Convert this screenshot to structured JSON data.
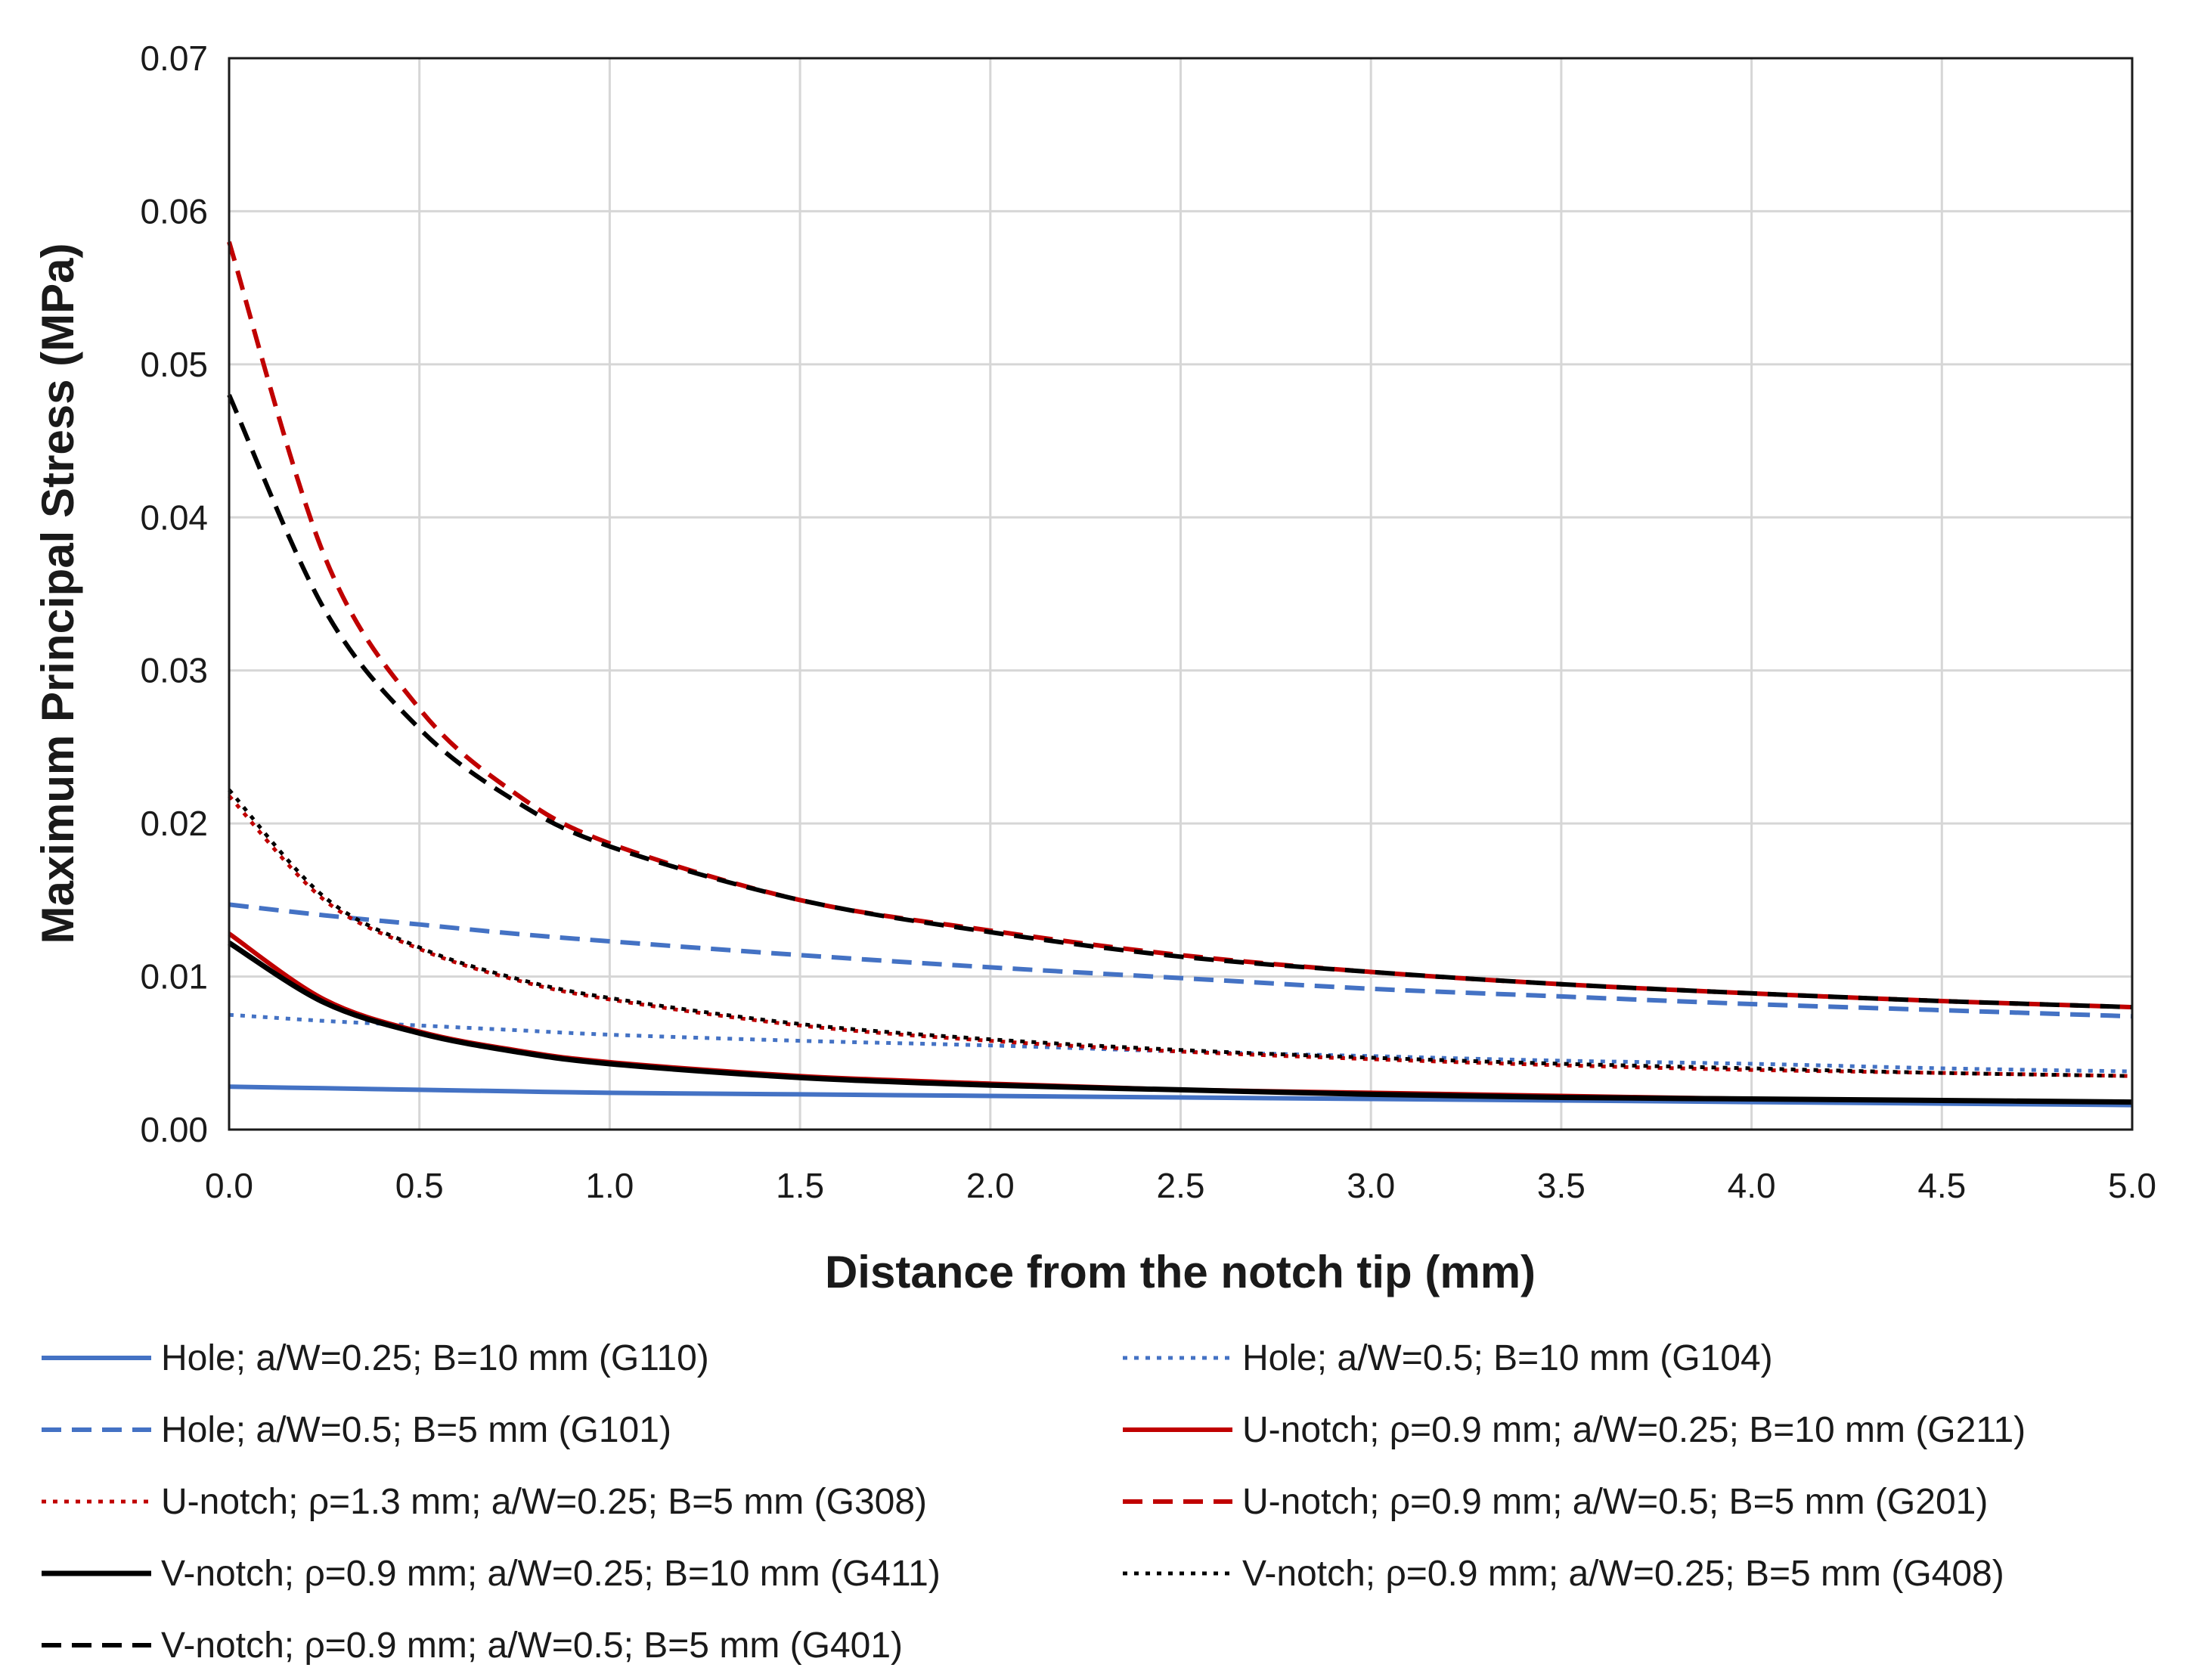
{
  "chart_data": {
    "type": "line",
    "title": "",
    "xlabel": "Distance from the notch tip (mm)",
    "ylabel": "Maximum Principal Stress (MPa)",
    "xlim": [
      0,
      5
    ],
    "ylim": [
      0,
      0.07
    ],
    "x_ticks": [
      "0.0",
      "0.5",
      "1.0",
      "1.5",
      "2.0",
      "2.5",
      "3.0",
      "3.5",
      "4.0",
      "4.5",
      "5.0"
    ],
    "y_ticks": [
      "0.00",
      "0.01",
      "0.02",
      "0.03",
      "0.04",
      "0.05",
      "0.06",
      "0.07"
    ],
    "grid": true,
    "legend_position": "bottom",
    "x": [
      0,
      0.25,
      0.5,
      0.75,
      1.0,
      1.5,
      2.0,
      2.5,
      3.0,
      3.5,
      4.0,
      4.5,
      5.0
    ],
    "series": [
      {
        "name": "Hole; a/W=0.25; B=10 mm (G110)",
        "color": "#4472c4",
        "style": "solid",
        "values": [
          0.0028,
          0.0027,
          0.0026,
          0.0025,
          0.0024,
          0.0023,
          0.0022,
          0.0021,
          0.002,
          0.0019,
          0.0018,
          0.0017,
          0.0016
        ]
      },
      {
        "name": "Hole; a/W=0.5; B=10 mm (G104)",
        "color": "#4472c4",
        "style": "dotted",
        "values": [
          0.0075,
          0.0071,
          0.0068,
          0.0065,
          0.0062,
          0.0058,
          0.0055,
          0.0051,
          0.0048,
          0.0045,
          0.0043,
          0.004,
          0.0038
        ]
      },
      {
        "name": "Hole; a/W=0.5; B=5 mm (G101)",
        "color": "#4472c4",
        "style": "dashed",
        "values": [
          0.0147,
          0.014,
          0.0134,
          0.0128,
          0.0123,
          0.0114,
          0.0106,
          0.0099,
          0.0092,
          0.0087,
          0.0082,
          0.0078,
          0.0074
        ]
      },
      {
        "name": "U-notch; ρ=0.9 mm; a/W=0.25; B=10 mm (G211)",
        "color": "#c00000",
        "style": "solid",
        "values": [
          0.0128,
          0.0085,
          0.0064,
          0.0052,
          0.0044,
          0.0035,
          0.003,
          0.0026,
          0.0024,
          0.0022,
          0.002,
          0.0019,
          0.0018
        ]
      },
      {
        "name": "U-notch; ρ=1.3 mm; a/W=0.25; B=5 mm (G308)",
        "color": "#c00000",
        "style": "dotted",
        "values": [
          0.0218,
          0.015,
          0.0118,
          0.0098,
          0.0085,
          0.0068,
          0.0058,
          0.0051,
          0.0046,
          0.0042,
          0.0039,
          0.0037,
          0.0035
        ]
      },
      {
        "name": "U-notch; ρ=0.9 mm; a/W=0.5; B=5 mm (G201)",
        "color": "#c00000",
        "style": "dashed",
        "values": [
          0.058,
          0.0375,
          0.0275,
          0.022,
          0.0187,
          0.015,
          0.013,
          0.0114,
          0.0103,
          0.0095,
          0.0089,
          0.0084,
          0.008
        ]
      },
      {
        "name": "V-notch; ρ=0.9 mm; a/W=0.25; B=10 mm (G411)",
        "color": "#000000",
        "style": "solid",
        "values": [
          0.0122,
          0.0083,
          0.0063,
          0.0051,
          0.0043,
          0.0034,
          0.0029,
          0.0026,
          0.0023,
          0.0021,
          0.002,
          0.0019,
          0.0018
        ]
      },
      {
        "name": "V-notch; ρ=0.9 mm; a/W=0.25; B=5 mm (G408)",
        "color": "#000000",
        "style": "dotted",
        "values": [
          0.0222,
          0.0152,
          0.0119,
          0.0099,
          0.0086,
          0.0069,
          0.0059,
          0.0052,
          0.0047,
          0.0043,
          0.004,
          0.0037,
          0.0035
        ]
      },
      {
        "name": "V-notch; ρ=0.9 mm; a/W=0.5; B=5 mm (G401)",
        "color": "#000000",
        "style": "dashed",
        "values": [
          0.048,
          0.034,
          0.0262,
          0.0215,
          0.0185,
          0.015,
          0.0129,
          0.0113,
          0.0103,
          0.0095,
          0.0089,
          0.0084,
          0.008
        ]
      }
    ]
  }
}
